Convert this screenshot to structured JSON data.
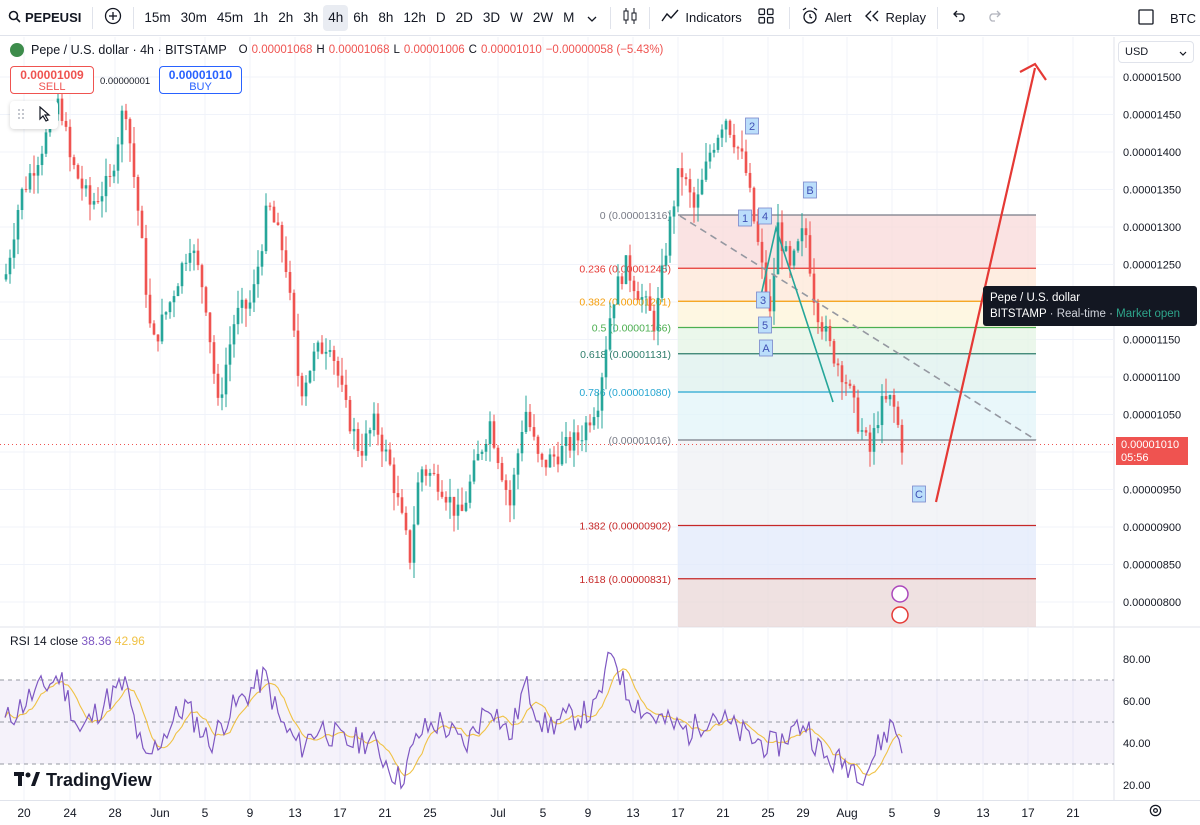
{
  "toolbar": {
    "symbol": "PEPEUSI",
    "intervals": [
      "15m",
      "30m",
      "45m",
      "1h",
      "2h",
      "3h",
      "4h",
      "6h",
      "8h",
      "12h",
      "D",
      "2D",
      "3D",
      "W",
      "2W",
      "M"
    ],
    "active_interval": "4h",
    "indicators_label": "Indicators",
    "alert_label": "Alert",
    "replay_label": "Replay",
    "right_symbol": "BTC"
  },
  "legend": {
    "title": "Pepe / U.S. dollar · 4h · BITSTAMP",
    "o_label": "O",
    "o": "0.00001068",
    "h_label": "H",
    "h": "0.00001068",
    "l_label": "L",
    "l": "0.00001006",
    "c_label": "C",
    "c": "0.00001010",
    "change": "−0.00000058 (−5.43%)"
  },
  "trade": {
    "sell_price": "0.00001009",
    "sell_label": "SELL",
    "spread": "0.00000001",
    "buy_price": "0.00001010",
    "buy_label": "BUY"
  },
  "currency": "USD",
  "price_axis": [
    "0.00001500",
    "0.00001450",
    "0.00001400",
    "0.00001350",
    "0.00001300",
    "0.00001250",
    "0.00001200",
    "0.00001150",
    "0.00001100",
    "0.00001050",
    "0.00001000",
    "0.00000950",
    "0.00000900",
    "0.00000850",
    "0.00000800"
  ],
  "price_axis_values": [
    1500,
    1450,
    1400,
    1350,
    1300,
    1250,
    1200,
    1150,
    1100,
    1050,
    1000,
    950,
    900,
    850,
    800
  ],
  "last_price": {
    "value": "0.00001010",
    "countdown": "05:56"
  },
  "fib_levels": [
    {
      "label": "0 (0.00001316)",
      "value": 1316,
      "color": "#787b86"
    },
    {
      "label": "0.236 (0.00001245)",
      "value": 1245,
      "color": "#e53935"
    },
    {
      "label": "0.382 (0.00001201)",
      "value": 1201,
      "color": "#f59e0b"
    },
    {
      "label": "0.5 (0.00001166)",
      "value": 1166,
      "color": "#4caf50"
    },
    {
      "label": "0.618 (0.00001131)",
      "value": 1131,
      "color": "#2e7d6b"
    },
    {
      "label": "0.786 (0.00001080)",
      "value": 1080,
      "color": "#26a6d1"
    },
    {
      "label": "(0.00001016)",
      "value": 1016,
      "color": "#787b86"
    },
    {
      "label": "1.382 (0.00000902)",
      "value": 902,
      "color": "#c62828"
    },
    {
      "label": "1.618 (0.00000831)",
      "value": 831,
      "color": "#c62828"
    }
  ],
  "wave_labels": [
    "1",
    "2",
    "3",
    "4",
    "5",
    "A",
    "B",
    "C"
  ],
  "tooltip": {
    "title": "Pepe / U.S. dollar",
    "exchange": "BITSTAMP",
    "realtime": "Real-time",
    "market": "Market open"
  },
  "rsi": {
    "label": "RSI 14 close",
    "value": "38.36",
    "ma": "42.96",
    "axis": [
      "80.00",
      "60.00",
      "40.00",
      "20.00"
    ],
    "axis_values": [
      80,
      60,
      40,
      20
    ]
  },
  "brand": "TradingView",
  "time_axis": [
    {
      "label": "20",
      "pos": 24
    },
    {
      "label": "24",
      "pos": 70
    },
    {
      "label": "28",
      "pos": 115
    },
    {
      "label": "Jun",
      "pos": 160
    },
    {
      "label": "5",
      "pos": 205
    },
    {
      "label": "9",
      "pos": 250
    },
    {
      "label": "13",
      "pos": 295
    },
    {
      "label": "17",
      "pos": 340
    },
    {
      "label": "21",
      "pos": 385
    },
    {
      "label": "25",
      "pos": 430
    },
    {
      "label": "Jul",
      "pos": 498
    },
    {
      "label": "5",
      "pos": 543
    },
    {
      "label": "9",
      "pos": 588
    },
    {
      "label": "13",
      "pos": 633
    },
    {
      "label": "17",
      "pos": 678
    },
    {
      "label": "21",
      "pos": 723
    },
    {
      "label": "25",
      "pos": 768
    },
    {
      "label": "29",
      "pos": 803
    },
    {
      "label": "Aug",
      "pos": 847
    },
    {
      "label": "5",
      "pos": 892
    },
    {
      "label": "9",
      "pos": 937
    },
    {
      "label": "13",
      "pos": 983
    },
    {
      "label": "17",
      "pos": 1028
    },
    {
      "label": "21",
      "pos": 1073
    }
  ]
}
